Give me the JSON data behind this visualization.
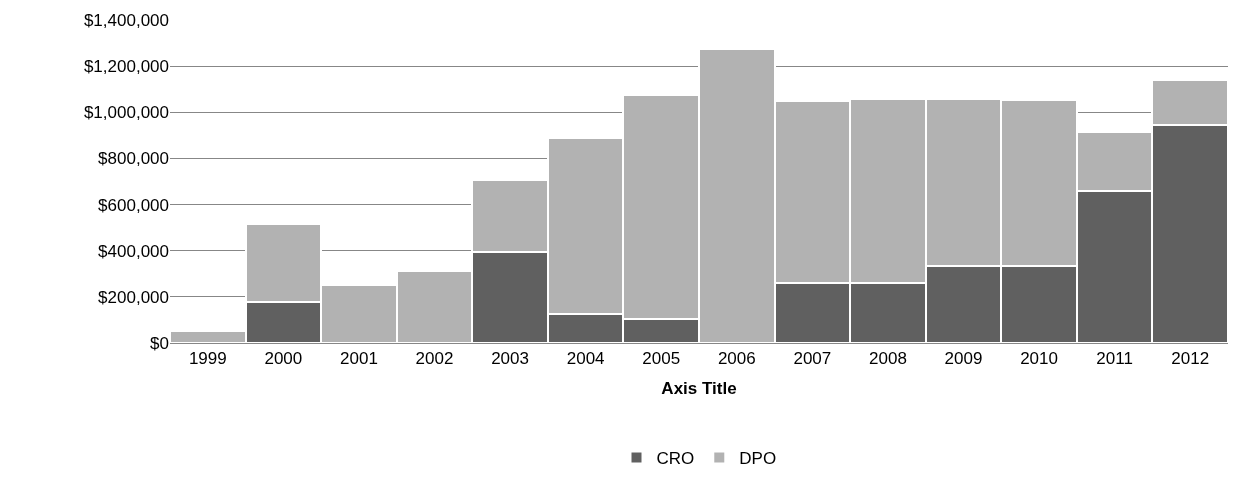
{
  "chart_data": {
    "type": "bar",
    "stacked": true,
    "xlabel": "Axis Title",
    "categories": [
      "1999",
      "2000",
      "2001",
      "2002",
      "2003",
      "2004",
      "2005",
      "2006",
      "2007",
      "2008",
      "2009",
      "2010",
      "2011",
      "2012"
    ],
    "series": [
      {
        "name": "CRO",
        "color": "#606060",
        "values": [
          0,
          177000,
          0,
          0,
          396000,
          127000,
          104000,
          0,
          259000,
          259000,
          333000,
          333000,
          657000,
          943000
        ]
      },
      {
        "name": "DPO",
        "color": "#b2b2b2",
        "values": [
          54000,
          338000,
          250000,
          312000,
          312000,
          761000,
          969000,
          1273000,
          790000,
          800000,
          726000,
          720000,
          259000,
          198000
        ]
      }
    ],
    "ylim": [
      0,
      1400000
    ],
    "yticks": [
      {
        "value": 0,
        "label": "$0"
      },
      {
        "value": 200000,
        "label": "$200,000"
      },
      {
        "value": 400000,
        "label": "$400,000"
      },
      {
        "value": 600000,
        "label": "$600,000"
      },
      {
        "value": 800000,
        "label": "$800,000"
      },
      {
        "value": 1000000,
        "label": "$1,000,000"
      },
      {
        "value": 1200000,
        "label": "$1,200,000"
      },
      {
        "value": 1400000,
        "label": "$1,400,000"
      }
    ],
    "grid": "y",
    "legend": "bottom"
  }
}
